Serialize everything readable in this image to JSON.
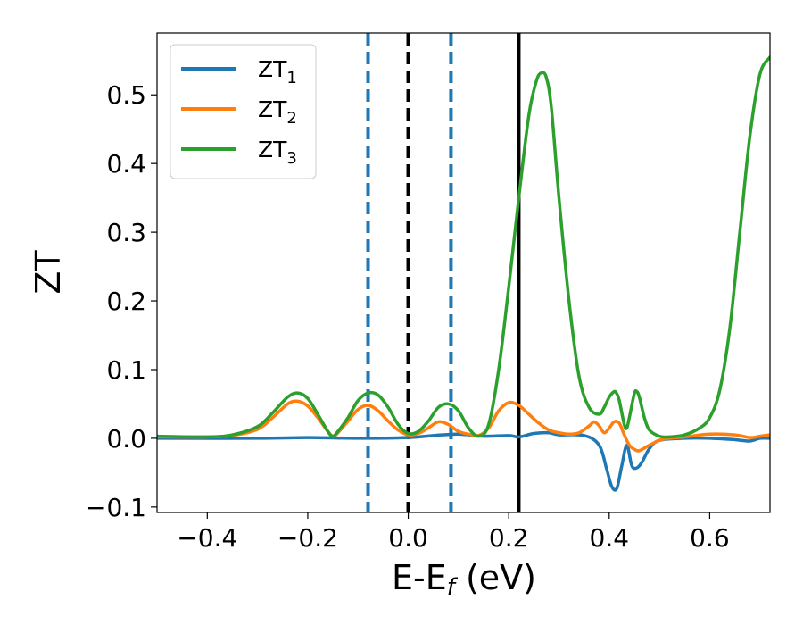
{
  "chart_data": {
    "type": "line",
    "xlabel": "E-E",
    "xlabel_sub": "f",
    "xlabel_unit": " (eV)",
    "ylabel": "ZT",
    "xlim": [
      -0.5,
      0.72
    ],
    "ylim": [
      -0.108,
      0.59
    ],
    "xticks": [
      -0.4,
      -0.2,
      0.0,
      0.2,
      0.4,
      0.6
    ],
    "xtick_labels": [
      "−0.4",
      "−0.2",
      "0.0",
      "0.2",
      "0.4",
      "0.6"
    ],
    "yticks": [
      -0.1,
      0.0,
      0.1,
      0.2,
      0.3,
      0.4,
      0.5
    ],
    "ytick_labels": [
      "−0.1",
      "0.0",
      "0.1",
      "0.2",
      "0.3",
      "0.4",
      "0.5"
    ],
    "grid": false,
    "legend_position": "top-left",
    "vlines": [
      {
        "x": -0.08,
        "style": "dashed",
        "color": "#1f77b4"
      },
      {
        "x": 0.0,
        "style": "dashed",
        "color": "#1f77b4"
      },
      {
        "x": 0.0,
        "style": "dashed",
        "color": "#000000"
      },
      {
        "x": 0.085,
        "style": "dashed",
        "color": "#1f77b4"
      },
      {
        "x": 0.22,
        "style": "solid",
        "color": "#000000"
      }
    ],
    "series": [
      {
        "name": "ZT",
        "name_sub": "1",
        "color": "#1f77b4",
        "x": [
          -0.5,
          -0.3,
          -0.2,
          -0.1,
          0.0,
          0.05,
          0.1,
          0.15,
          0.2,
          0.22,
          0.25,
          0.28,
          0.3,
          0.35,
          0.38,
          0.395,
          0.405,
          0.415,
          0.425,
          0.435,
          0.445,
          0.455,
          0.465,
          0.48,
          0.5,
          0.55,
          0.6,
          0.65,
          0.68,
          0.7,
          0.72
        ],
        "y": [
          0.0,
          0.0,
          0.001,
          0.0,
          0.001,
          0.004,
          0.006,
          0.003,
          0.004,
          0.002,
          0.007,
          0.008,
          0.005,
          0.004,
          -0.01,
          -0.045,
          -0.07,
          -0.073,
          -0.04,
          -0.01,
          -0.04,
          -0.043,
          -0.035,
          -0.015,
          -0.003,
          0.0,
          0.0,
          -0.002,
          -0.004,
          0.0,
          0.0
        ]
      },
      {
        "name": "ZT",
        "name_sub": "2",
        "color": "#ff7f0e",
        "x": [
          -0.5,
          -0.4,
          -0.35,
          -0.3,
          -0.27,
          -0.24,
          -0.22,
          -0.2,
          -0.18,
          -0.16,
          -0.15,
          -0.14,
          -0.12,
          -0.1,
          -0.08,
          -0.06,
          -0.04,
          -0.02,
          0.0,
          0.02,
          0.04,
          0.06,
          0.08,
          0.1,
          0.12,
          0.14,
          0.16,
          0.18,
          0.2,
          0.22,
          0.24,
          0.26,
          0.28,
          0.3,
          0.32,
          0.34,
          0.36,
          0.37,
          0.38,
          0.39,
          0.4,
          0.41,
          0.42,
          0.43,
          0.44,
          0.45,
          0.46,
          0.48,
          0.5,
          0.52,
          0.55,
          0.6,
          0.65,
          0.68,
          0.7,
          0.72
        ],
        "y": [
          0.002,
          0.002,
          0.004,
          0.013,
          0.03,
          0.05,
          0.054,
          0.047,
          0.03,
          0.01,
          0.003,
          0.008,
          0.025,
          0.042,
          0.048,
          0.04,
          0.025,
          0.012,
          0.005,
          0.007,
          0.015,
          0.024,
          0.02,
          0.01,
          0.006,
          0.004,
          0.015,
          0.04,
          0.052,
          0.048,
          0.035,
          0.022,
          0.012,
          0.008,
          0.006,
          0.008,
          0.018,
          0.024,
          0.018,
          0.008,
          0.015,
          0.024,
          0.022,
          0.005,
          -0.01,
          -0.016,
          -0.018,
          -0.01,
          -0.003,
          0.0,
          0.002,
          0.006,
          0.005,
          0.001,
          0.003,
          0.005
        ]
      },
      {
        "name": "ZT",
        "name_sub": "3",
        "color": "#2ca02c",
        "x": [
          -0.5,
          -0.4,
          -0.35,
          -0.3,
          -0.27,
          -0.24,
          -0.22,
          -0.2,
          -0.18,
          -0.16,
          -0.15,
          -0.14,
          -0.12,
          -0.1,
          -0.08,
          -0.06,
          -0.04,
          -0.02,
          0.0,
          0.02,
          0.04,
          0.06,
          0.08,
          0.1,
          0.12,
          0.14,
          0.16,
          0.18,
          0.2,
          0.22,
          0.24,
          0.255,
          0.265,
          0.275,
          0.285,
          0.3,
          0.32,
          0.34,
          0.36,
          0.38,
          0.39,
          0.4,
          0.41,
          0.415,
          0.42,
          0.43,
          0.435,
          0.44,
          0.45,
          0.455,
          0.46,
          0.47,
          0.48,
          0.5,
          0.52,
          0.55,
          0.58,
          0.6,
          0.62,
          0.64,
          0.66,
          0.68,
          0.7,
          0.72
        ],
        "y": [
          0.003,
          0.002,
          0.005,
          0.017,
          0.037,
          0.06,
          0.066,
          0.058,
          0.035,
          0.01,
          0.003,
          0.01,
          0.03,
          0.055,
          0.066,
          0.063,
          0.045,
          0.02,
          0.007,
          0.01,
          0.025,
          0.045,
          0.05,
          0.04,
          0.015,
          0.003,
          0.02,
          0.1,
          0.22,
          0.35,
          0.47,
          0.52,
          0.532,
          0.525,
          0.48,
          0.35,
          0.2,
          0.09,
          0.045,
          0.035,
          0.045,
          0.06,
          0.068,
          0.065,
          0.055,
          0.02,
          0.015,
          0.03,
          0.065,
          0.068,
          0.06,
          0.03,
          0.012,
          0.003,
          0.002,
          0.005,
          0.015,
          0.03,
          0.07,
          0.16,
          0.3,
          0.44,
          0.53,
          0.555
        ]
      }
    ]
  }
}
